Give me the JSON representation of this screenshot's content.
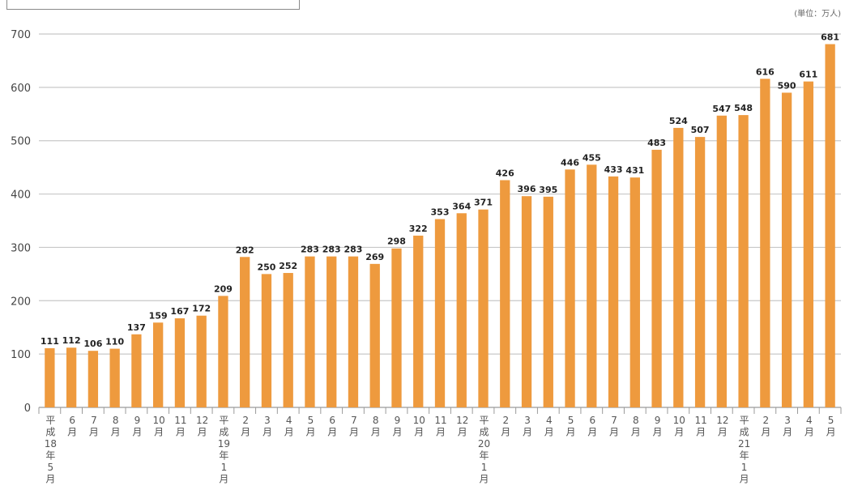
{
  "chart_data": {
    "type": "bar",
    "unit_label": "(単位：万人)",
    "ylim": [
      0,
      700
    ],
    "yticks": [
      0,
      100,
      200,
      300,
      400,
      500,
      600,
      700
    ],
    "grid": true,
    "bar_color": "#ee9a3e",
    "categories": [
      "平成18年5月",
      "6月",
      "7月",
      "8月",
      "9月",
      "10月",
      "11月",
      "12月",
      "平成19年1月",
      "2月",
      "3月",
      "4月",
      "5月",
      "6月",
      "7月",
      "8月",
      "9月",
      "10月",
      "11月",
      "12月",
      "平成20年1月",
      "2月",
      "3月",
      "4月",
      "5月",
      "6月",
      "7月",
      "8月",
      "9月",
      "10月",
      "11月",
      "12月",
      "平成21年1月",
      "2月",
      "3月",
      "4月",
      "5月"
    ],
    "values": [
      111,
      112,
      106,
      110,
      137,
      159,
      167,
      172,
      209,
      282,
      250,
      252,
      283,
      283,
      283,
      269,
      298,
      322,
      353,
      364,
      371,
      426,
      396,
      395,
      446,
      455,
      433,
      431,
      483,
      524,
      507,
      547,
      548,
      616,
      590,
      611,
      681
    ]
  }
}
